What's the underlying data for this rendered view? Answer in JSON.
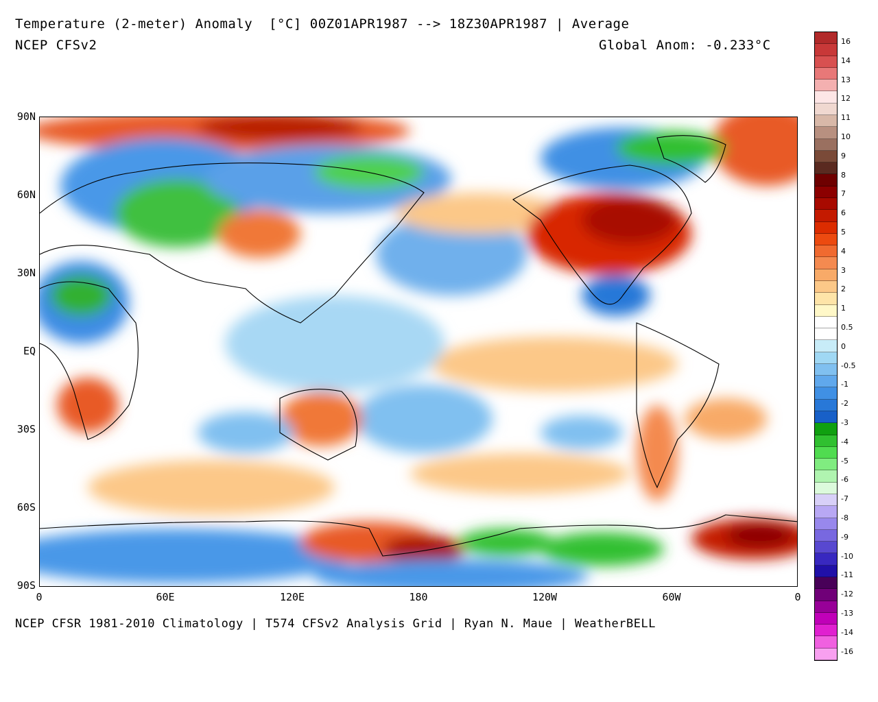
{
  "header": {
    "title": "Temperature (2-meter) Anomaly  [°C] 00Z01APR1987 --> 18Z30APR1987 | Average",
    "model": "NCEP CFSv2",
    "global_anom": "Global Anom: -0.233°C"
  },
  "footer": {
    "credits": "NCEP CFSR 1981-2010 Climatology | T574 CFSv2 Analysis Grid | Ryan N. Maue | WeatherBELL"
  },
  "axes": {
    "lat_labels": [
      "90N",
      "60N",
      "30N",
      "EQ",
      "30S",
      "60S",
      "90S"
    ],
    "lon_labels": [
      "0",
      "60E",
      "120E",
      "180",
      "120W",
      "60W",
      "0"
    ]
  },
  "colorbar": {
    "labels": [
      "16",
      "14",
      "13",
      "12",
      "11",
      "10",
      "9",
      "8",
      "7",
      "6",
      "5",
      "4",
      "3",
      "2",
      "1",
      "0.5",
      "0",
      "-0.5",
      "-1",
      "-2",
      "-3",
      "-4",
      "-5",
      "-6",
      "-7",
      "-8",
      "-9",
      "-10",
      "-11",
      "-12",
      "-13",
      "-14",
      "-16"
    ],
    "colors": [
      "#b22a2a",
      "#c83838",
      "#d85050",
      "#e87878",
      "#f4b0b0",
      "#fde6e6",
      "#f0d8d0",
      "#d8b8a8",
      "#b89080",
      "#9a7060",
      "#7a4a38",
      "#5a2a20",
      "#6e0000",
      "#8c0000",
      "#a80a00",
      "#c41a00",
      "#dc2c00",
      "#ec4a10",
      "#f06a30",
      "#f48a50",
      "#f8aa68",
      "#fcc888",
      "#fee4a8",
      "#fff8c8",
      "#ffffff",
      "#ffffff",
      "#c8ecf8",
      "#a0d8f4",
      "#80c0f0",
      "#60a8ec",
      "#4090e4",
      "#2878d8",
      "#1860c8",
      "#10a010",
      "#30c030",
      "#50dc50",
      "#80ec80",
      "#b0f4b0",
      "#dcfadc",
      "#d8d0f8",
      "#b8a8f4",
      "#9888ec",
      "#7868e0",
      "#5848d0",
      "#3828c0",
      "#2010a8",
      "#480058",
      "#700078",
      "#980098",
      "#c000b8",
      "#e020d0",
      "#f060e0",
      "#f8a0f0"
    ]
  }
}
